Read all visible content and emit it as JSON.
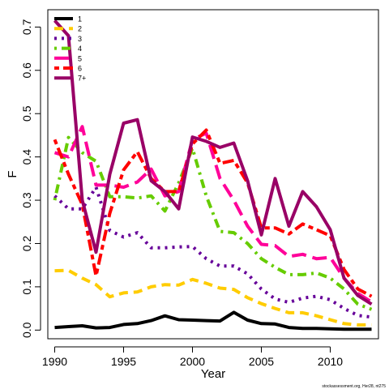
{
  "chart_data": {
    "type": "line",
    "xlabel": "Year",
    "ylabel": "F",
    "xlim": [
      1989.5,
      2013.5
    ],
    "ylim": [
      -0.02,
      0.74
    ],
    "x_ticks": [
      1990,
      1995,
      2000,
      2005,
      2010
    ],
    "y_ticks": [
      0.0,
      0.1,
      0.2,
      0.3,
      0.4,
      0.5,
      0.6,
      0.7
    ],
    "y_tick_labels": [
      "0.0",
      "0.1",
      "0.2",
      "0.3",
      "0.4",
      "0.5",
      "0.6",
      "0.7"
    ],
    "legend_position": "top-left",
    "credit": "stockassessment.org, Her28, nt275",
    "x": [
      1990,
      1991,
      1992,
      1993,
      1994,
      1995,
      1996,
      1997,
      1998,
      1999,
      2000,
      2001,
      2002,
      2003,
      2004,
      2005,
      2006,
      2007,
      2008,
      2009,
      2010,
      2011,
      2012,
      2013
    ],
    "series": [
      {
        "name": "1",
        "color": "#000000",
        "dash": "solid",
        "values": [
          0.006,
          0.008,
          0.01,
          0.005,
          0.006,
          0.013,
          0.015,
          0.022,
          0.033,
          0.024,
          0.023,
          0.022,
          0.021,
          0.041,
          0.023,
          0.015,
          0.014,
          0.006,
          0.004,
          0.004,
          0.003,
          0.002,
          0.002,
          0.002
        ]
      },
      {
        "name": "2",
        "color": "#FFCC00",
        "dash": "dashed",
        "values": [
          0.137,
          0.138,
          0.12,
          0.105,
          0.077,
          0.086,
          0.088,
          0.1,
          0.105,
          0.104,
          0.117,
          0.108,
          0.097,
          0.094,
          0.075,
          0.061,
          0.05,
          0.04,
          0.04,
          0.033,
          0.024,
          0.015,
          0.012,
          0.012
        ]
      },
      {
        "name": "3",
        "color": "#660099",
        "dash": "dotted",
        "values": [
          0.31,
          0.28,
          0.28,
          0.33,
          0.23,
          0.215,
          0.225,
          0.19,
          0.19,
          0.192,
          0.193,
          0.165,
          0.148,
          0.148,
          0.13,
          0.095,
          0.072,
          0.064,
          0.074,
          0.078,
          0.07,
          0.05,
          0.034,
          0.03
        ]
      },
      {
        "name": "4",
        "color": "#66CC00",
        "dash": "dashdot",
        "values": [
          0.3,
          0.445,
          0.41,
          0.39,
          0.308,
          0.308,
          0.305,
          0.31,
          0.275,
          0.34,
          0.42,
          0.31,
          0.228,
          0.225,
          0.2,
          0.165,
          0.145,
          0.128,
          0.128,
          0.132,
          0.12,
          0.095,
          0.06,
          0.048
        ]
      },
      {
        "name": "5",
        "color": "#FF0099",
        "dash": "longdash",
        "values": [
          0.41,
          0.4,
          0.47,
          0.335,
          0.335,
          0.33,
          0.342,
          0.372,
          0.31,
          0.32,
          0.44,
          0.455,
          0.35,
          0.3,
          0.24,
          0.198,
          0.195,
          0.17,
          0.175,
          0.165,
          0.168,
          0.12,
          0.085,
          0.065
        ]
      },
      {
        "name": "6",
        "color": "#FF0000",
        "dash": "twodash",
        "values": [
          0.44,
          0.36,
          0.29,
          0.125,
          0.27,
          0.37,
          0.412,
          0.35,
          0.32,
          0.32,
          0.43,
          0.462,
          0.385,
          0.392,
          0.34,
          0.236,
          0.236,
          0.222,
          0.245,
          0.232,
          0.218,
          0.14,
          0.095,
          0.078
        ]
      },
      {
        "name": "7+",
        "color": "#990066",
        "dash": "solid",
        "values": [
          0.715,
          0.68,
          0.3,
          0.18,
          0.36,
          0.478,
          0.486,
          0.345,
          0.32,
          0.28,
          0.446,
          0.436,
          0.422,
          0.432,
          0.345,
          0.22,
          0.35,
          0.24,
          0.32,
          0.285,
          0.232,
          0.12,
          0.08,
          0.06
        ]
      }
    ]
  }
}
